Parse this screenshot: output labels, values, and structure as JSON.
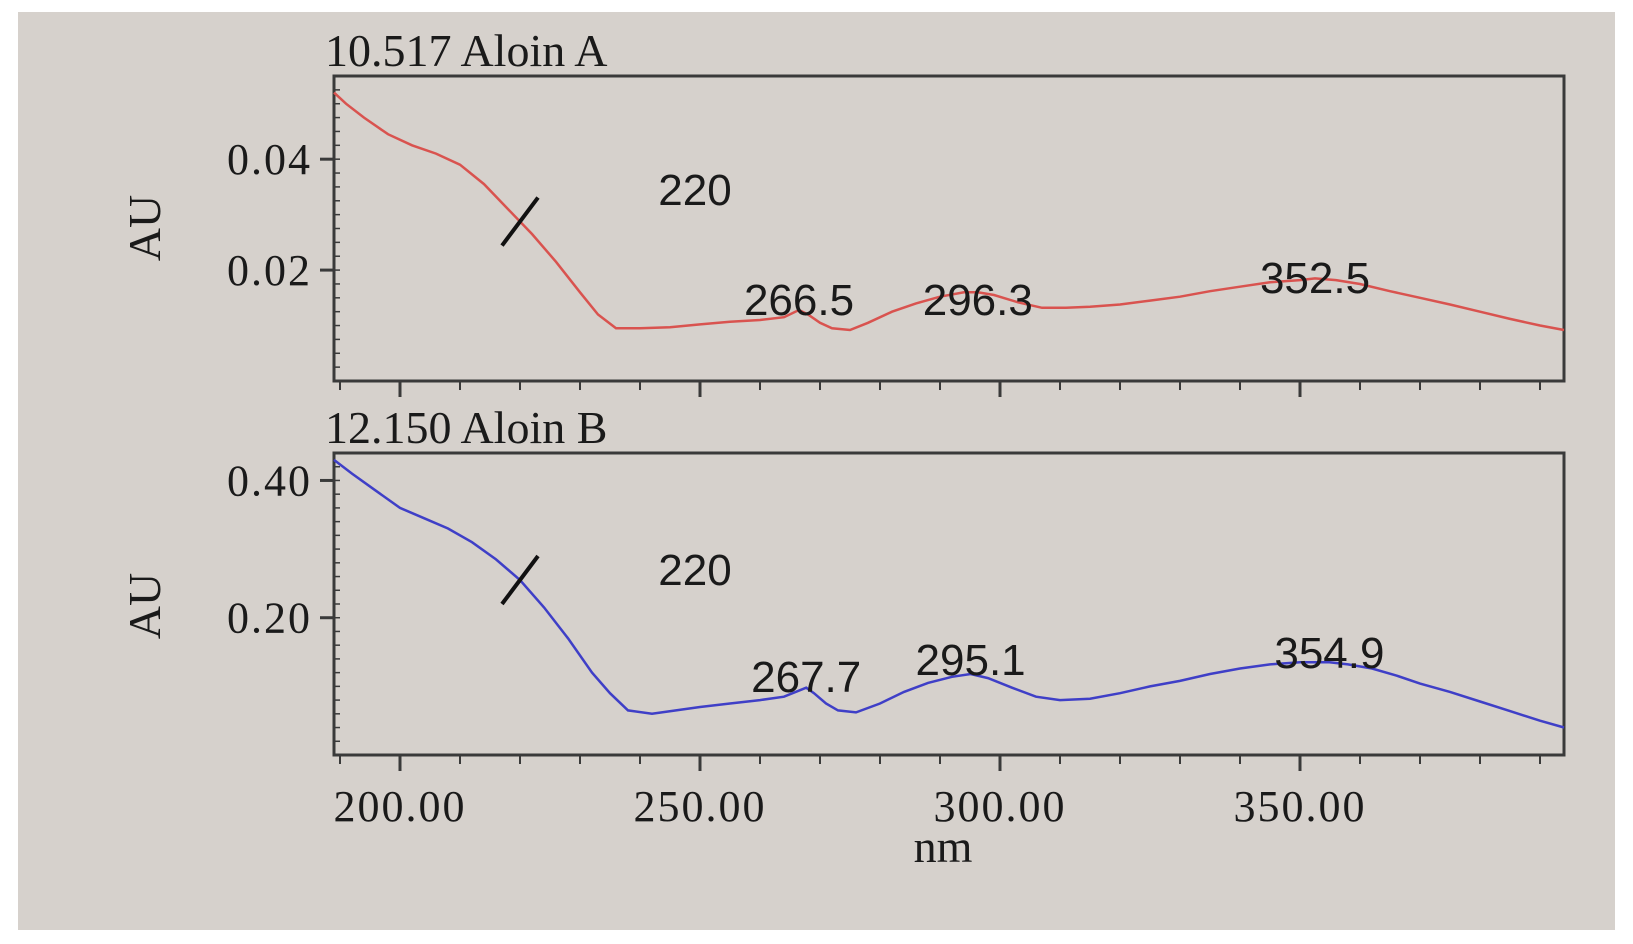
{
  "colors": {
    "background": "#d6d1cc",
    "frame": "#3a3a3a",
    "series_a": "#d9534f",
    "series_b": "#3f3fc7",
    "marker": "#111111"
  },
  "chart_data": [
    {
      "type": "line",
      "title": "10.517 Aloin A",
      "xlabel": "",
      "ylabel": "AU",
      "xlim": [
        189,
        394
      ],
      "ylim": [
        0.0,
        0.055
      ],
      "yticks": [
        {
          "value": 0.02,
          "label": "0.02"
        },
        {
          "value": 0.04,
          "label": "0.04"
        }
      ],
      "grid": false,
      "series": [
        {
          "color": "#d9534f",
          "x": [
            189,
            191,
            194,
            198,
            202,
            206,
            210,
            214,
            218,
            222,
            226,
            230,
            233,
            236,
            240,
            245,
            250,
            255,
            260,
            264,
            266.5,
            268,
            270,
            272,
            275,
            278,
            282,
            286,
            290,
            294,
            296.3,
            299,
            303,
            307,
            311,
            315,
            320,
            325,
            330,
            335,
            340,
            345,
            350,
            352.5,
            356,
            360,
            365,
            370,
            375,
            380,
            385,
            390,
            394
          ],
          "y": [
            0.052,
            0.05,
            0.0475,
            0.0445,
            0.0425,
            0.041,
            0.039,
            0.0355,
            0.031,
            0.0265,
            0.0215,
            0.016,
            0.012,
            0.0095,
            0.0095,
            0.0097,
            0.0102,
            0.0107,
            0.011,
            0.0115,
            0.0128,
            0.012,
            0.0105,
            0.0095,
            0.0092,
            0.0105,
            0.0125,
            0.014,
            0.0152,
            0.016,
            0.016,
            0.0155,
            0.0142,
            0.0132,
            0.0132,
            0.0134,
            0.0138,
            0.0145,
            0.0152,
            0.0162,
            0.017,
            0.0178,
            0.0182,
            0.0185,
            0.0182,
            0.0175,
            0.0162,
            0.015,
            0.0138,
            0.0125,
            0.0112,
            0.01,
            0.0092
          ]
        }
      ],
      "annotations": [
        {
          "text": "220",
          "x": 220
        },
        {
          "text": "266.5",
          "x": 266.5
        },
        {
          "text": "296.3",
          "x": 296.3
        },
        {
          "text": "352.5",
          "x": 352.5
        }
      ]
    },
    {
      "type": "line",
      "title": "12.150 Aloin B",
      "xlabel": "nm",
      "ylabel": "AU",
      "xlim": [
        189,
        394
      ],
      "ylim": [
        0.0,
        0.44
      ],
      "xticks": [
        {
          "value": 200,
          "label": "200.00"
        },
        {
          "value": 250,
          "label": "250.00"
        },
        {
          "value": 300,
          "label": "300.00"
        },
        {
          "value": 350,
          "label": "350.00"
        }
      ],
      "yticks": [
        {
          "value": 0.2,
          "label": "0.20"
        },
        {
          "value": 0.4,
          "label": "0.40"
        }
      ],
      "grid": false,
      "series": [
        {
          "color": "#3f3fc7",
          "x": [
            189,
            192,
            196,
            200,
            204,
            208,
            212,
            216,
            220,
            224,
            228,
            232,
            235,
            238,
            242,
            246,
            250,
            255,
            260,
            264,
            267.7,
            269,
            271,
            273,
            276,
            280,
            284,
            288,
            292,
            295.1,
            298,
            302,
            306,
            310,
            315,
            320,
            325,
            330,
            335,
            340,
            345,
            350,
            354.9,
            358,
            362,
            366,
            370,
            375,
            380,
            385,
            390,
            394
          ],
          "y": [
            0.43,
            0.41,
            0.385,
            0.36,
            0.345,
            0.33,
            0.31,
            0.285,
            0.255,
            0.215,
            0.17,
            0.12,
            0.09,
            0.065,
            0.06,
            0.065,
            0.07,
            0.075,
            0.08,
            0.085,
            0.098,
            0.09,
            0.075,
            0.065,
            0.062,
            0.075,
            0.092,
            0.105,
            0.114,
            0.118,
            0.112,
            0.098,
            0.085,
            0.08,
            0.082,
            0.09,
            0.1,
            0.108,
            0.118,
            0.126,
            0.132,
            0.135,
            0.135,
            0.132,
            0.126,
            0.116,
            0.104,
            0.092,
            0.078,
            0.064,
            0.05,
            0.04
          ]
        }
      ],
      "annotations": [
        {
          "text": "220",
          "x": 220
        },
        {
          "text": "267.7",
          "x": 267.7
        },
        {
          "text": "295.1",
          "x": 295.1
        },
        {
          "text": "354.9",
          "x": 354.9
        }
      ]
    }
  ]
}
